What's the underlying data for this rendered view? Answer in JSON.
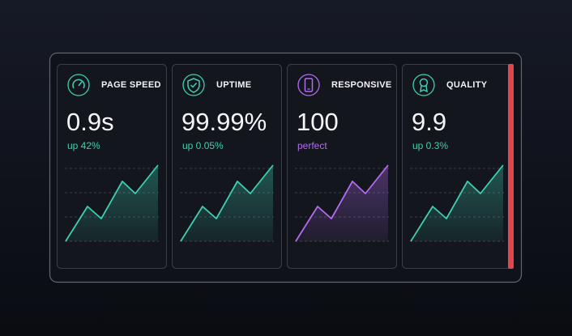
{
  "cards": [
    {
      "title": "PAGE SPEED",
      "value": "0.9s",
      "change": "up 42%",
      "color": "#3ecfb0"
    },
    {
      "title": "UPTIME",
      "value": "99.99%",
      "change": "up 0.05%",
      "color": "#3ecfb0"
    },
    {
      "title": "RESPONSIVE",
      "value": "100",
      "change": "perfect",
      "color": "#b36bf0"
    },
    {
      "title": "QUALITY",
      "value": "9.9",
      "change": "up 0.3%",
      "color": "#3ecfb0"
    }
  ]
}
